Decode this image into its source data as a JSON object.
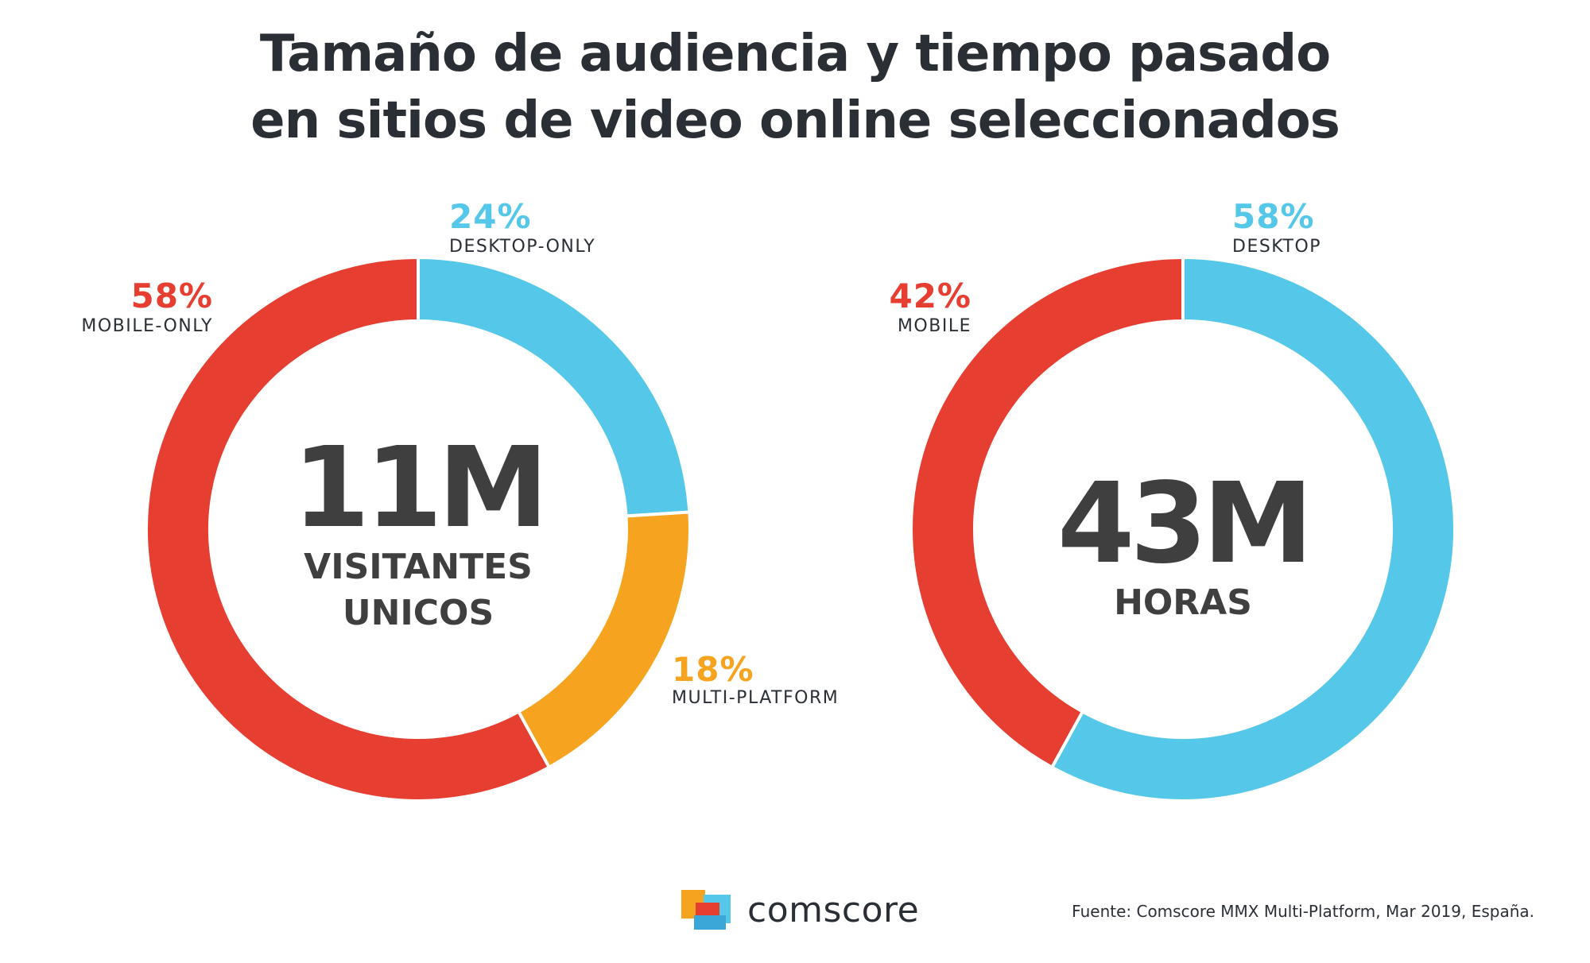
{
  "title": {
    "line1": "Tamaño de audiencia y tiempo pasado",
    "line2": "en sitios de video online seleccionados"
  },
  "colors": {
    "red": "#e63e31",
    "blue": "#55c7e9",
    "orange": "#f6a41f",
    "text": "#2a2f36",
    "center": "#3f3f3f"
  },
  "chart_data": [
    {
      "type": "pie",
      "subtype": "donut",
      "center_value": "11M",
      "center_label_line1": "VISITANTES",
      "center_label_line2": "UNICOS",
      "slices": [
        {
          "label": "DESKTOP-ONLY",
          "pct_text": "24%",
          "value": 24,
          "color": "#55c7e9"
        },
        {
          "label": "MULTI-PLATFORM",
          "pct_text": "18%",
          "value": 18,
          "color": "#f6a41f"
        },
        {
          "label": "MOBILE-ONLY",
          "pct_text": "58%",
          "value": 58,
          "color": "#e63e31"
        }
      ]
    },
    {
      "type": "pie",
      "subtype": "donut",
      "center_value": "43M",
      "center_label_line1": "HORAS",
      "slices": [
        {
          "label": "DESKTOP",
          "pct_text": "58%",
          "value": 58,
          "color": "#55c7e9"
        },
        {
          "label": "MOBILE",
          "pct_text": "42%",
          "value": 42,
          "color": "#e63e31"
        }
      ]
    }
  ],
  "footer": {
    "brand": "comscore",
    "source": "Fuente: Comscore MMX Multi-Platform, Mar 2019, España."
  }
}
